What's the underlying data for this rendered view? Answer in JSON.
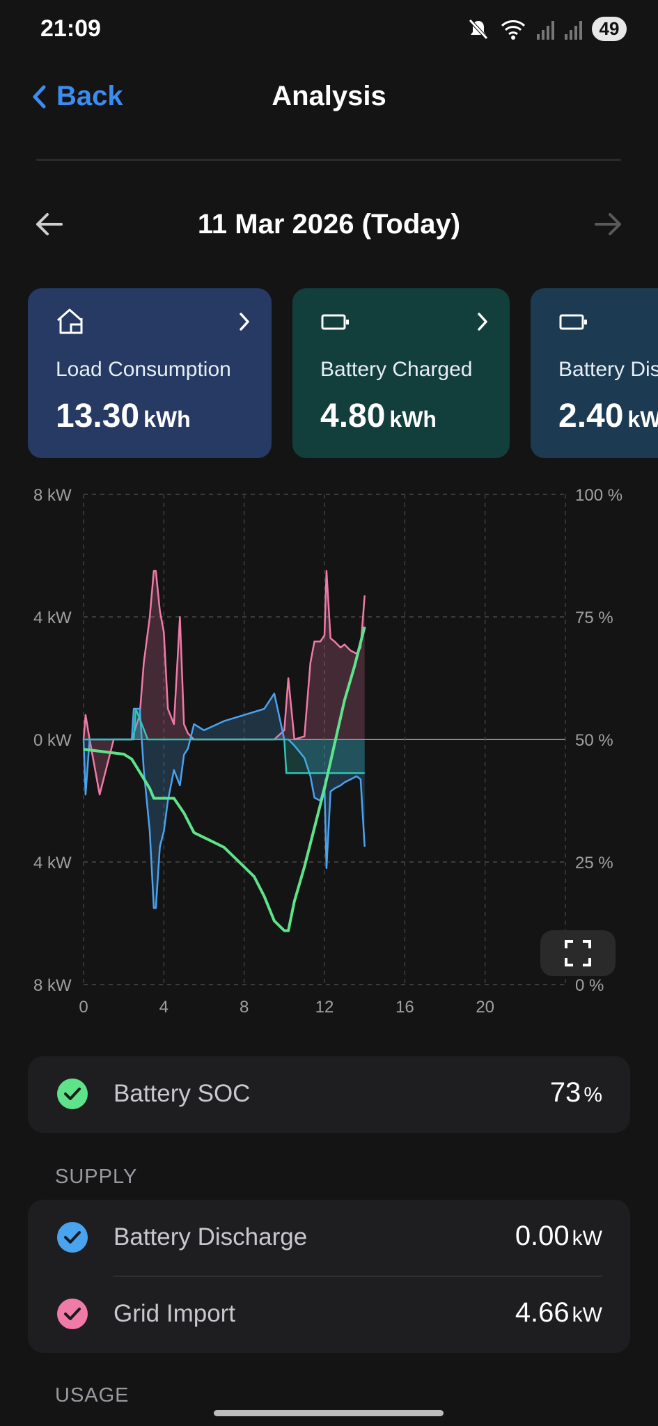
{
  "status": {
    "time": "21:09",
    "battery": "49"
  },
  "nav": {
    "back_label": "Back",
    "title": "Analysis"
  },
  "date": {
    "label": "11 Mar 2026 (Today)"
  },
  "cards": [
    {
      "label": "Load Consumption",
      "value": "13.30",
      "unit": "kWh",
      "color": "#263a63",
      "icon": "home-icon"
    },
    {
      "label": "Battery Charged",
      "value": "4.80",
      "unit": "kWh",
      "color": "#123f3c",
      "icon": "battery-icon"
    },
    {
      "label": "Battery Discharged",
      "value": "2.40",
      "unit": "kWh",
      "color": "#1c3b53",
      "icon": "battery-icon"
    }
  ],
  "chart_data": {
    "type": "line",
    "left_axis": {
      "ticks": [
        "8 kW",
        "4 kW",
        "0 kW",
        "4 kW",
        "8 kW"
      ],
      "range_kw": [
        -8,
        8
      ]
    },
    "right_axis": {
      "ticks": [
        "100 %",
        "75 %",
        "50 %",
        "25 %",
        "0 %"
      ],
      "range_pct": [
        0,
        100
      ]
    },
    "x_axis": {
      "ticks": [
        "0",
        "4",
        "8",
        "12",
        "16",
        "20"
      ],
      "range_hours": [
        0,
        24
      ]
    },
    "series": [
      {
        "color": "#f07aa8",
        "x": [
          0,
          0.1,
          0.3,
          0.8,
          1.5,
          2.4,
          2.5,
          2.8,
          3.0,
          3.3,
          3.5,
          3.6,
          3.8,
          4.0,
          4.2,
          4.5,
          4.8,
          5.0,
          5.2,
          5.5,
          6,
          7,
          8,
          9,
          9.5,
          10,
          10.2,
          10.5,
          11,
          11.3,
          11.5,
          11.8,
          12.0,
          12.1,
          12.3,
          12.5,
          12.8,
          13.0,
          13.3,
          13.6,
          13.8,
          14.0
        ],
        "y": [
          0,
          0.8,
          0,
          -1.8,
          0,
          0,
          0.2,
          0.8,
          2.5,
          4.0,
          5.5,
          5.5,
          4.2,
          3.5,
          1.0,
          0.5,
          4.0,
          0.5,
          0.2,
          0,
          0,
          0,
          0,
          0,
          0,
          0.3,
          2.0,
          0,
          0.1,
          2.5,
          3.2,
          3.2,
          3.4,
          5.5,
          3.3,
          3.2,
          3.0,
          3.1,
          2.9,
          2.8,
          3.0,
          4.7
        ]
      },
      {
        "color": "#4aa3ef",
        "x": [
          0,
          0.1,
          0.3,
          0.8,
          1.5,
          2.4,
          2.5,
          2.8,
          3.0,
          3.3,
          3.5,
          3.6,
          3.8,
          4.0,
          4.2,
          4.5,
          4.8,
          5.0,
          5.2,
          5.5,
          6,
          7,
          8,
          9,
          9.5,
          10,
          10.2,
          10.5,
          11,
          11.3,
          11.5,
          11.8,
          12.0,
          12.1,
          12.3,
          12.5,
          12.8,
          13.0,
          13.3,
          13.6,
          13.8,
          14.0
        ],
        "y": [
          0,
          -1.8,
          0,
          0,
          0,
          0,
          1.0,
          1.0,
          -1.0,
          -3.0,
          -5.5,
          -5.5,
          -3.5,
          -3.0,
          -2.0,
          -1.0,
          -1.5,
          -0.5,
          -0.3,
          0.5,
          0.3,
          0.6,
          0.8,
          1.0,
          1.5,
          0,
          0,
          -0.2,
          -0.6,
          -1.2,
          -1.9,
          -2.0,
          -1.5,
          -4.2,
          -1.7,
          -1.6,
          -1.5,
          -1.4,
          -1.3,
          -1.2,
          -1.3,
          -3.5
        ]
      },
      {
        "color": "#2ec4b6",
        "x": [
          0,
          2.5,
          2.6,
          3.2,
          10.0,
          10.1,
          14.0
        ],
        "y": [
          0,
          0,
          1.0,
          0,
          0,
          -1.1,
          -1.1
        ]
      },
      {
        "color": "#5ee38a",
        "x": [
          0,
          2.0,
          2.4,
          3.0,
          3.3,
          3.5,
          4.0,
          4.5,
          5.0,
          5.5,
          6.0,
          6.5,
          7.0,
          7.5,
          8.0,
          8.5,
          9.0,
          9.5,
          10.0,
          10.2,
          10.5,
          11.0,
          11.5,
          12.0,
          12.5,
          13.0,
          13.5,
          14.0
        ],
        "y": [
          48,
          47,
          46,
          42,
          40,
          38,
          38,
          38,
          35,
          31,
          30,
          29,
          28,
          26,
          24,
          22,
          18,
          13,
          11,
          11,
          17,
          24,
          32,
          40,
          49,
          58,
          65,
          73
        ]
      }
    ],
    "grid": "dashed"
  },
  "soc": {
    "label": "Battery SOC",
    "value": "73",
    "unit": "%"
  },
  "supply": {
    "heading": "SUPPLY",
    "rows": [
      {
        "label": "Battery Discharge",
        "value": "0.00",
        "unit": "kW",
        "color": "#4aa3ef"
      },
      {
        "label": "Grid Import",
        "value": "4.66",
        "unit": "kW",
        "color": "#f07aa8"
      }
    ]
  },
  "usage": {
    "heading": "USAGE"
  }
}
